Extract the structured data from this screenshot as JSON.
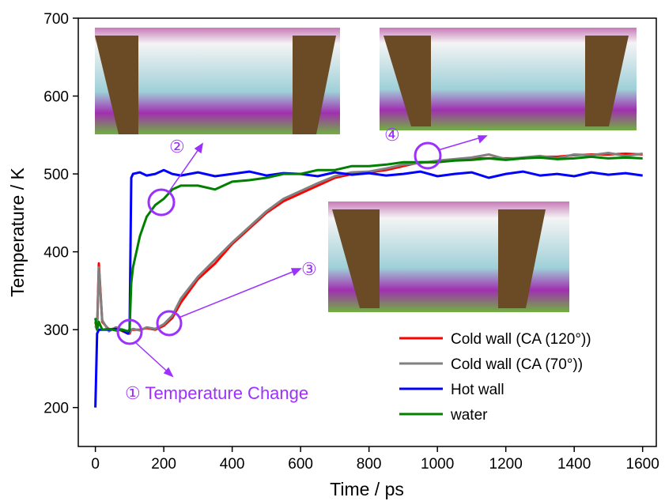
{
  "chart_data": {
    "type": "line",
    "x_label": "Time / ps",
    "y_label": "Temperature / K",
    "xlim": [
      -50,
      1640
    ],
    "ylim": [
      150,
      700
    ],
    "xticks": [
      0,
      200,
      400,
      600,
      800,
      1000,
      1200,
      1400,
      1600
    ],
    "yticks": [
      200,
      300,
      400,
      500,
      600,
      700
    ],
    "legend": "lower right",
    "x": [
      0,
      5,
      10,
      20,
      40,
      60,
      80,
      95,
      100,
      105,
      110,
      130,
      150,
      175,
      200,
      225,
      250,
      300,
      350,
      400,
      450,
      500,
      550,
      600,
      650,
      700,
      750,
      800,
      850,
      900,
      950,
      1000,
      1050,
      1100,
      1150,
      1200,
      1250,
      1300,
      1350,
      1400,
      1450,
      1500,
      1550,
      1600
    ],
    "series": [
      {
        "name": "Cold wall (CA (120°))",
        "color": "#ff0000",
        "values": [
          310,
          300,
          385,
          310,
          300,
          302,
          298,
          295,
          295,
          300,
          300,
          300,
          302,
          300,
          305,
          315,
          335,
          365,
          385,
          410,
          430,
          450,
          465,
          475,
          485,
          495,
          500,
          502,
          505,
          510,
          515,
          515,
          518,
          520,
          520,
          520,
          520,
          522,
          522,
          524,
          525,
          525,
          526,
          525
        ]
      },
      {
        "name": "Cold wall (CA (70°))",
        "color": "#808080",
        "values": [
          305,
          300,
          380,
          312,
          298,
          303,
          300,
          296,
          297,
          300,
          301,
          299,
          303,
          301,
          307,
          318,
          340,
          368,
          390,
          412,
          432,
          452,
          468,
          478,
          488,
          497,
          502,
          503,
          507,
          512,
          514,
          517,
          519,
          521,
          525,
          519,
          521,
          523,
          520,
          525,
          524,
          527,
          523,
          526
        ]
      },
      {
        "name": "Hot wall",
        "color": "#0000ff",
        "values": [
          200,
          295,
          300,
          300,
          300,
          301,
          299,
          295,
          300,
          495,
          500,
          502,
          498,
          500,
          505,
          500,
          498,
          502,
          497,
          500,
          503,
          498,
          501,
          500,
          497,
          502,
          499,
          501,
          498,
          500,
          503,
          497,
          500,
          502,
          495,
          500,
          503,
          498,
          500,
          497,
          502,
          499,
          501,
          498
        ]
      },
      {
        "name": "water",
        "color": "#008000",
        "values": [
          315,
          300,
          310,
          300,
          301,
          299,
          300,
          298,
          300,
          360,
          380,
          420,
          445,
          460,
          468,
          480,
          485,
          485,
          480,
          490,
          492,
          495,
          500,
          500,
          505,
          505,
          510,
          510,
          512,
          515,
          515,
          515,
          517,
          518,
          520,
          518,
          520,
          521,
          519,
          520,
          522,
          520,
          521,
          520
        ]
      }
    ],
    "annotations": [
      "① Temperature Change",
      "②",
      "③",
      "④"
    ]
  }
}
